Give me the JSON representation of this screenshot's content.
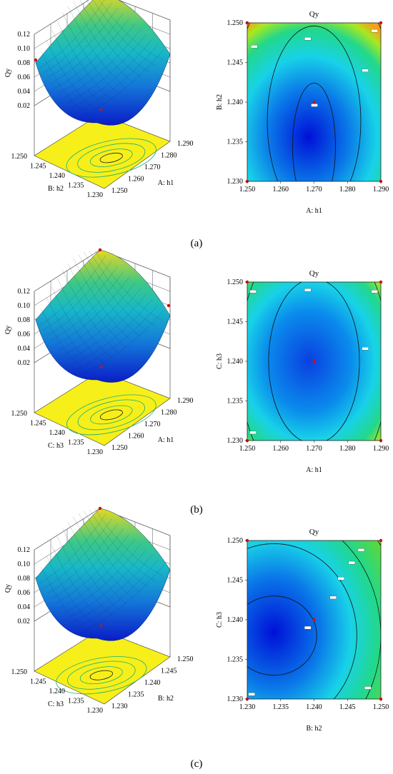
{
  "chart_data": [
    {
      "type": "surface",
      "panel": "(a)",
      "title": "",
      "zlabel": "Qy",
      "xlabel": "A: h1",
      "ylabel": "B: h2",
      "x_ticks": [
        "1.250",
        "1.260",
        "1.270",
        "1.280",
        "1.290"
      ],
      "y_ticks": [
        "1.230",
        "1.235",
        "1.240",
        "1.245",
        "1.250"
      ],
      "z_ticks": [
        "0.02",
        "0.04",
        "0.06",
        "0.08",
        "0.10",
        "0.12"
      ],
      "xlim": [
        1.25,
        1.29
      ],
      "ylim": [
        1.23,
        1.25
      ],
      "zlim": [
        0.02,
        0.12
      ],
      "center": [
        1.27,
        1.24
      ]
    },
    {
      "type": "contour",
      "panel": "(a)",
      "title": "Qy",
      "xlabel": "A: h1",
      "ylabel": "B: h2",
      "x_ticks": [
        "1.250",
        "1.260",
        "1.270",
        "1.280",
        "1.290"
      ],
      "y_ticks": [
        "1.230",
        "1.235",
        "1.240",
        "1.245",
        "1.250"
      ],
      "xlim": [
        1.25,
        1.29
      ],
      "ylim": [
        1.23,
        1.25
      ],
      "center_point": [
        1.27,
        1.24
      ]
    },
    {
      "type": "surface",
      "panel": "(b)",
      "title": "",
      "zlabel": "Qy",
      "xlabel": "A: h1",
      "ylabel": "C: h3",
      "x_ticks": [
        "1.250",
        "1.260",
        "1.270",
        "1.280",
        "1.290"
      ],
      "y_ticks": [
        "1.230",
        "1.235",
        "1.240",
        "1.245",
        "1.250"
      ],
      "z_ticks": [
        "0.02",
        "0.04",
        "0.06",
        "0.08",
        "0.10",
        "0.12"
      ],
      "xlim": [
        1.25,
        1.29
      ],
      "ylim": [
        1.23,
        1.25
      ],
      "zlim": [
        0.02,
        0.12
      ],
      "center": [
        1.27,
        1.24
      ]
    },
    {
      "type": "contour",
      "panel": "(b)",
      "title": "Qy",
      "xlabel": "A: h1",
      "ylabel": "C: h3",
      "x_ticks": [
        "1.250",
        "1.260",
        "1.270",
        "1.280",
        "1.290"
      ],
      "y_ticks": [
        "1.230",
        "1.235",
        "1.240",
        "1.245",
        "1.250"
      ],
      "xlim": [
        1.25,
        1.29
      ],
      "ylim": [
        1.23,
        1.25
      ],
      "center_point": [
        1.27,
        1.24
      ]
    },
    {
      "type": "surface",
      "panel": "(c)",
      "title": "",
      "zlabel": "Qy",
      "xlabel": "B: h2",
      "ylabel": "C: h3",
      "x_ticks": [
        "1.230",
        "1.235",
        "1.240",
        "1.245",
        "1.250"
      ],
      "y_ticks": [
        "1.230",
        "1.235",
        "1.240",
        "1.245",
        "1.250"
      ],
      "z_ticks": [
        "0.02",
        "0.04",
        "0.06",
        "0.08",
        "0.10",
        "0.12"
      ],
      "xlim": [
        1.23,
        1.25
      ],
      "ylim": [
        1.23,
        1.25
      ],
      "zlim": [
        0.02,
        0.12
      ],
      "center": [
        1.24,
        1.24
      ]
    },
    {
      "type": "contour",
      "panel": "(c)",
      "title": "Qy",
      "xlabel": "B: h2",
      "ylabel": "C: h3",
      "x_ticks": [
        "1.230",
        "1.235",
        "1.240",
        "1.245",
        "1.250"
      ],
      "y_ticks": [
        "1.230",
        "1.235",
        "1.240",
        "1.245",
        "1.250"
      ],
      "xlim": [
        1.23,
        1.25
      ],
      "ylim": [
        1.23,
        1.25
      ],
      "center_point": [
        1.24,
        1.24
      ]
    }
  ],
  "panel_labels": [
    "(a)",
    "(b)",
    "(c)"
  ]
}
